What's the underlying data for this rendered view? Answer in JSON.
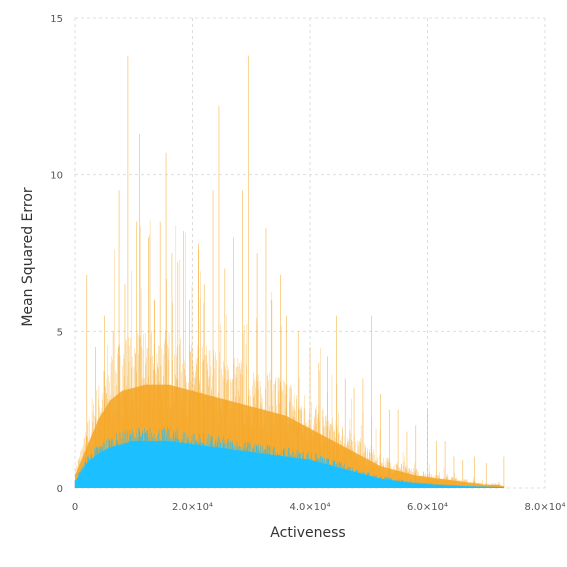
{
  "chart_data": {
    "type": "area",
    "title": "",
    "xlabel": "Activeness",
    "ylabel": "Mean Squared Error",
    "xlim": [
      0,
      80000
    ],
    "ylim": [
      0,
      15
    ],
    "grid": true,
    "x_tick_labels": [
      "0",
      "2.0×10⁴",
      "4.0×10⁴",
      "6.0×10⁴",
      "8.0×10⁴"
    ],
    "y_tick_labels": [
      "0",
      "5",
      "10",
      "15"
    ],
    "x_ticks": [
      0,
      20000,
      40000,
      60000,
      80000
    ],
    "y_ticks": [
      0,
      5,
      10,
      15
    ],
    "colors": {
      "orange": "#f5a623",
      "blue": "#1ec0ff",
      "grid": "#dddddd"
    },
    "series": [
      {
        "color": "#f5a623",
        "x": [
          0,
          2000,
          4000,
          6000,
          8000,
          10000,
          12000,
          14000,
          16000,
          18000,
          20000,
          22000,
          24000,
          26000,
          28000,
          30000,
          32000,
          34000,
          36000,
          38000,
          40000,
          42000,
          44000,
          46000,
          48000,
          50000,
          52000,
          54000,
          56000,
          58000,
          60000,
          62000,
          64000,
          66000,
          68000,
          70000,
          72000,
          73000
        ],
        "y": [
          0.4,
          1.3,
          2.2,
          2.8,
          3.1,
          3.2,
          3.3,
          3.3,
          3.3,
          3.2,
          3.1,
          3.0,
          2.9,
          2.8,
          2.7,
          2.6,
          2.5,
          2.4,
          2.3,
          2.1,
          1.9,
          1.7,
          1.5,
          1.3,
          1.1,
          0.9,
          0.7,
          0.6,
          0.5,
          0.4,
          0.35,
          0.3,
          0.25,
          0.2,
          0.15,
          0.1,
          0.1,
          0.05
        ],
        "spikes": [
          [
            2000,
            6.8
          ],
          [
            3500,
            4.5
          ],
          [
            5000,
            5.5
          ],
          [
            6500,
            5.0
          ],
          [
            7500,
            9.5
          ],
          [
            8500,
            6.5
          ],
          [
            9000,
            13.8
          ],
          [
            10500,
            8.5
          ],
          [
            11000,
            11.3
          ],
          [
            12500,
            8.0
          ],
          [
            13500,
            6.0
          ],
          [
            14500,
            8.5
          ],
          [
            15500,
            10.7
          ],
          [
            16500,
            7.5
          ],
          [
            17500,
            7.2
          ],
          [
            18500,
            8.2
          ],
          [
            19500,
            6.0
          ],
          [
            21000,
            7.8
          ],
          [
            22000,
            6.5
          ],
          [
            23500,
            9.5
          ],
          [
            24500,
            12.2
          ],
          [
            25500,
            7.0
          ],
          [
            27000,
            8.0
          ],
          [
            28500,
            9.5
          ],
          [
            29500,
            13.8
          ],
          [
            31000,
            7.5
          ],
          [
            32500,
            8.3
          ],
          [
            33500,
            6.0
          ],
          [
            35000,
            6.8
          ],
          [
            36000,
            5.5
          ],
          [
            38000,
            5.0
          ],
          [
            40000,
            4.5
          ],
          [
            41500,
            4.0
          ],
          [
            43000,
            4.2
          ],
          [
            44500,
            5.5
          ],
          [
            46000,
            3.5
          ],
          [
            47500,
            3.2
          ],
          [
            49000,
            3.5
          ],
          [
            50500,
            5.5
          ],
          [
            52000,
            3.0
          ],
          [
            53500,
            2.5
          ],
          [
            55000,
            2.5
          ],
          [
            56500,
            1.8
          ],
          [
            58000,
            2.0
          ],
          [
            60000,
            2.5
          ],
          [
            61500,
            1.5
          ],
          [
            63000,
            1.5
          ],
          [
            64500,
            1.0
          ],
          [
            66000,
            0.9
          ],
          [
            68000,
            1.0
          ],
          [
            70000,
            0.8
          ],
          [
            73000,
            1.0
          ]
        ]
      },
      {
        "color": "#1ec0ff",
        "x": [
          0,
          2000,
          4000,
          6000,
          8000,
          10000,
          12000,
          14000,
          16000,
          18000,
          20000,
          22000,
          24000,
          26000,
          28000,
          30000,
          32000,
          34000,
          36000,
          38000,
          40000,
          42000,
          44000,
          46000,
          48000,
          50000,
          52000,
          54000,
          56000,
          58000,
          60000,
          62000,
          64000,
          66000,
          68000,
          70000,
          72000,
          73000
        ],
        "y": [
          0.2,
          0.8,
          1.1,
          1.3,
          1.4,
          1.5,
          1.5,
          1.5,
          1.5,
          1.45,
          1.4,
          1.35,
          1.3,
          1.25,
          1.2,
          1.15,
          1.1,
          1.05,
          1.0,
          0.95,
          0.9,
          0.8,
          0.7,
          0.6,
          0.5,
          0.4,
          0.3,
          0.25,
          0.2,
          0.15,
          0.12,
          0.1,
          0.08,
          0.06,
          0.05,
          0.04,
          0.03,
          0.02
        ]
      }
    ]
  }
}
